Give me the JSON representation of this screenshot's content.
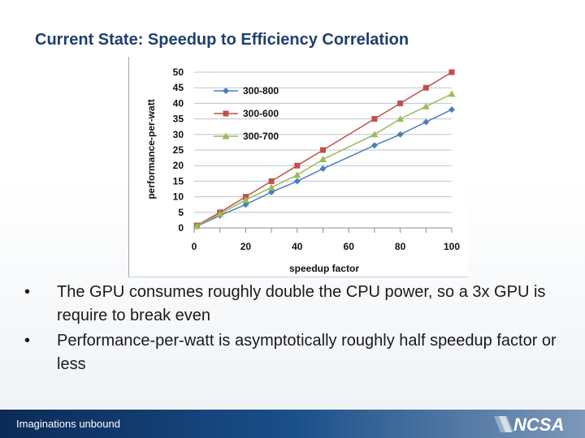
{
  "slide": {
    "title": "Current State: Speedup to Efficiency Correlation"
  },
  "bullets": [
    {
      "marker": "•",
      "text": "The GPU consumes roughly double the CPU power, so a 3x GPU is require to break even"
    },
    {
      "marker": "•",
      "text": "Performance-per-watt is asymptotically roughly half speedup factor or less"
    }
  ],
  "footer": {
    "tagline": "Imaginations unbound",
    "logo_text": "NCSA"
  },
  "chart_data": {
    "type": "line",
    "title": "",
    "xlabel": "speedup factor",
    "ylabel": "performance-per-watt",
    "xlim": [
      0,
      100
    ],
    "ylim": [
      0,
      50
    ],
    "xticks": [
      0,
      20,
      40,
      60,
      80,
      100
    ],
    "yticks": [
      0,
      5,
      10,
      15,
      20,
      25,
      30,
      35,
      40,
      45,
      50
    ],
    "grid": "horizontal",
    "legend_position": "top-left",
    "series": [
      {
        "name": "300-800",
        "color": "#4a7ebf",
        "marker": "diamond",
        "x": [
          1,
          10,
          20,
          30,
          40,
          50,
          70,
          80,
          90,
          100
        ],
        "y": [
          0.5,
          4,
          7.5,
          11.5,
          15,
          19,
          26.5,
          30,
          34,
          38
        ]
      },
      {
        "name": "300-600",
        "color": "#c0504d",
        "marker": "square",
        "x": [
          1,
          10,
          20,
          30,
          40,
          50,
          70,
          80,
          90,
          100
        ],
        "y": [
          0.8,
          5,
          10,
          15,
          20,
          25,
          35,
          40,
          45,
          50
        ]
      },
      {
        "name": "300-700",
        "color": "#9bbb59",
        "marker": "triangle",
        "x": [
          1,
          10,
          20,
          30,
          40,
          50,
          70,
          80,
          90,
          100
        ],
        "y": [
          0.6,
          4.5,
          9,
          13,
          17,
          22,
          30,
          35,
          39,
          43
        ]
      }
    ]
  }
}
